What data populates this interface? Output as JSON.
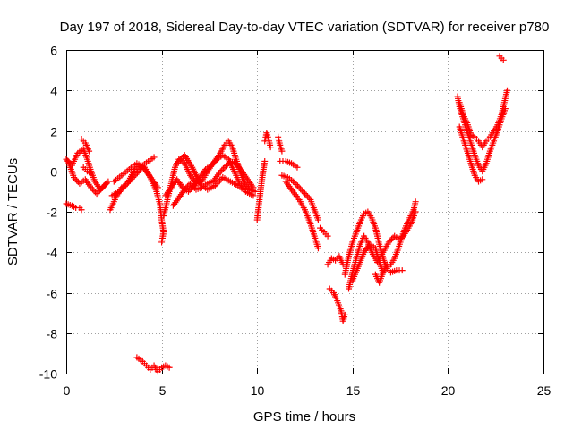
{
  "chart_data": {
    "type": "scatter",
    "title": "Day 197 of 2018, Sidereal Day-to-day VTEC variation (SDTVAR) for receiver p780",
    "xlabel": "GPS time / hours",
    "ylabel": "SDTVAR / TECUs",
    "xlim": [
      0,
      25
    ],
    "ylim": [
      -10,
      6
    ],
    "xticks": [
      "0",
      "5",
      "10",
      "15",
      "20",
      "25"
    ],
    "yticks": [
      "6",
      "4",
      "2",
      "0",
      "-2",
      "-4",
      "-6",
      "-8",
      "-10"
    ],
    "grid": true,
    "marker": "+",
    "marker_color": "#ff0000",
    "series": [
      {
        "name": "SDTVAR",
        "segments": [
          [
            [
              0.0,
              0.6
            ],
            [
              0.3,
              0.3
            ],
            [
              0.6,
              0.9
            ],
            [
              0.9,
              1.1
            ],
            [
              1.1,
              0.6
            ],
            [
              1.3,
              0.0
            ],
            [
              1.5,
              -0.5
            ],
            [
              1.8,
              -0.9
            ],
            [
              2.1,
              -0.6
            ]
          ],
          [
            [
              0.1,
              0.5
            ],
            [
              0.4,
              -0.3
            ],
            [
              0.7,
              -0.6
            ],
            [
              1.0,
              -0.4
            ],
            [
              1.3,
              -0.8
            ],
            [
              1.6,
              -1.1
            ],
            [
              1.9,
              -0.8
            ],
            [
              2.2,
              -0.5
            ]
          ],
          [
            [
              0.0,
              -1.6
            ],
            [
              0.3,
              -1.7
            ],
            [
              0.5,
              -1.8
            ],
            [
              0.7,
              -1.8
            ],
            [
              0.8,
              -1.9
            ]
          ],
          [
            [
              0.8,
              1.6
            ],
            [
              1.0,
              1.4
            ],
            [
              1.1,
              1.2
            ],
            [
              1.2,
              1.0
            ]
          ],
          [
            [
              0.9,
              0.2
            ],
            [
              1.1,
              0.0
            ],
            [
              1.3,
              -0.1
            ]
          ],
          [
            [
              2.3,
              -1.9
            ],
            [
              2.6,
              -1.3
            ],
            [
              2.9,
              -0.8
            ],
            [
              3.2,
              -0.6
            ],
            [
              3.5,
              -0.3
            ],
            [
              3.8,
              0.0
            ],
            [
              4.0,
              0.3
            ],
            [
              4.3,
              0.5
            ],
            [
              4.6,
              0.7
            ]
          ],
          [
            [
              2.4,
              -1.2
            ],
            [
              2.8,
              -1.0
            ],
            [
              3.2,
              -0.6
            ],
            [
              3.6,
              0.1
            ],
            [
              3.9,
              0.3
            ],
            [
              4.2,
              0.0
            ],
            [
              4.5,
              -0.4
            ],
            [
              4.8,
              -0.8
            ]
          ],
          [
            [
              2.5,
              -0.5
            ],
            [
              2.9,
              -0.2
            ],
            [
              3.3,
              0.1
            ],
            [
              3.7,
              0.4
            ],
            [
              4.1,
              0.2
            ],
            [
              4.4,
              -0.3
            ],
            [
              4.7,
              -0.9
            ],
            [
              4.9,
              -1.6
            ],
            [
              5.0,
              -2.4
            ],
            [
              5.1,
              -3.0
            ],
            [
              5.0,
              -3.5
            ]
          ],
          [
            [
              3.7,
              -9.2
            ],
            [
              4.0,
              -9.4
            ],
            [
              4.2,
              -9.6
            ],
            [
              4.4,
              -9.8
            ],
            [
              4.6,
              -9.6
            ],
            [
              4.8,
              -9.9
            ],
            [
              5.0,
              -9.7
            ],
            [
              5.2,
              -9.6
            ],
            [
              5.4,
              -9.7
            ]
          ],
          [
            [
              5.1,
              -2.2
            ],
            [
              5.3,
              -1.4
            ],
            [
              5.5,
              -0.6
            ],
            [
              5.7,
              0.2
            ],
            [
              5.9,
              0.6
            ],
            [
              6.2,
              0.4
            ],
            [
              6.5,
              -0.2
            ],
            [
              6.8,
              -0.6
            ],
            [
              7.1,
              -0.5
            ],
            [
              7.4,
              0.0
            ],
            [
              7.7,
              0.4
            ],
            [
              8.0,
              0.8
            ],
            [
              8.3,
              1.3
            ],
            [
              8.5,
              1.5
            ],
            [
              8.7,
              1.2
            ],
            [
              8.9,
              0.6
            ],
            [
              9.1,
              0.0
            ],
            [
              9.3,
              -0.5
            ],
            [
              9.6,
              -0.9
            ],
            [
              9.9,
              -1.0
            ]
          ],
          [
            [
              5.2,
              -1.2
            ],
            [
              5.5,
              -0.8
            ],
            [
              5.8,
              -0.4
            ],
            [
              6.1,
              -0.8
            ],
            [
              6.4,
              -1.0
            ],
            [
              6.7,
              -0.7
            ],
            [
              7.0,
              -0.3
            ],
            [
              7.3,
              0.1
            ],
            [
              7.6,
              0.3
            ],
            [
              7.9,
              0.6
            ],
            [
              8.2,
              0.8
            ],
            [
              8.5,
              0.6
            ],
            [
              8.8,
              0.0
            ],
            [
              9.1,
              -0.6
            ],
            [
              9.4,
              -0.9
            ]
          ],
          [
            [
              5.6,
              -1.7
            ],
            [
              5.9,
              -1.3
            ],
            [
              6.2,
              -0.9
            ],
            [
              6.5,
              -0.6
            ],
            [
              6.8,
              -0.9
            ],
            [
              7.1,
              -0.8
            ],
            [
              7.4,
              -0.6
            ],
            [
              7.7,
              -0.5
            ],
            [
              8.0,
              -0.1
            ],
            [
              8.3,
              0.2
            ],
            [
              8.6,
              0.5
            ],
            [
              8.9,
              0.4
            ],
            [
              9.2,
              0.0
            ],
            [
              9.5,
              -0.4
            ],
            [
              9.8,
              -0.8
            ]
          ],
          [
            [
              5.8,
              0.4
            ],
            [
              6.2,
              0.8
            ],
            [
              6.6,
              0.2
            ],
            [
              7.0,
              -0.6
            ],
            [
              7.4,
              -0.9
            ],
            [
              7.8,
              -0.7
            ],
            [
              8.2,
              -0.3
            ],
            [
              8.6,
              -0.5
            ],
            [
              9.0,
              -0.7
            ],
            [
              9.4,
              -1.0
            ],
            [
              9.8,
              -1.2
            ]
          ],
          [
            [
              10.0,
              -2.4
            ],
            [
              10.1,
              -1.6
            ],
            [
              10.2,
              -0.8
            ],
            [
              10.3,
              -0.1
            ],
            [
              10.4,
              0.5
            ]
          ],
          [
            [
              10.4,
              1.5
            ],
            [
              10.5,
              1.9
            ],
            [
              10.6,
              1.6
            ],
            [
              10.7,
              1.2
            ]
          ],
          [
            [
              11.1,
              1.7
            ],
            [
              11.2,
              1.3
            ],
            [
              11.3,
              1.0
            ]
          ],
          [
            [
              11.2,
              0.5
            ],
            [
              11.5,
              0.5
            ],
            [
              11.8,
              0.4
            ],
            [
              12.1,
              0.2
            ]
          ],
          [
            [
              11.3,
              -0.2
            ],
            [
              11.6,
              -0.3
            ],
            [
              11.9,
              -0.5
            ],
            [
              12.2,
              -0.8
            ],
            [
              12.5,
              -1.1
            ],
            [
              12.8,
              -1.4
            ],
            [
              13.0,
              -1.9
            ],
            [
              13.2,
              -2.4
            ]
          ],
          [
            [
              11.5,
              -0.5
            ],
            [
              11.8,
              -0.9
            ],
            [
              12.2,
              -1.4
            ],
            [
              12.5,
              -1.9
            ],
            [
              12.8,
              -2.6
            ],
            [
              13.0,
              -3.2
            ],
            [
              13.2,
              -3.8
            ]
          ],
          [
            [
              13.3,
              -2.8
            ],
            [
              13.5,
              -3.0
            ],
            [
              13.7,
              -3.2
            ]
          ],
          [
            [
              13.7,
              -4.6
            ],
            [
              13.9,
              -4.3
            ],
            [
              14.1,
              -4.4
            ],
            [
              14.3,
              -4.2
            ],
            [
              14.5,
              -4.6
            ]
          ],
          [
            [
              13.8,
              -5.8
            ],
            [
              14.0,
              -6.0
            ],
            [
              14.2,
              -6.4
            ],
            [
              14.4,
              -6.9
            ],
            [
              14.5,
              -7.4
            ],
            [
              14.6,
              -7.1
            ]
          ],
          [
            [
              14.6,
              -5.1
            ],
            [
              14.8,
              -4.2
            ],
            [
              15.0,
              -3.5
            ],
            [
              15.2,
              -3.0
            ],
            [
              15.4,
              -2.5
            ],
            [
              15.6,
              -2.1
            ],
            [
              15.8,
              -2.0
            ],
            [
              16.0,
              -2.3
            ],
            [
              16.2,
              -2.8
            ],
            [
              16.4,
              -3.6
            ],
            [
              16.6,
              -4.3
            ],
            [
              16.8,
              -4.8
            ],
            [
              17.0,
              -4.6
            ],
            [
              17.2,
              -4.3
            ],
            [
              17.4,
              -3.8
            ],
            [
              17.6,
              -3.2
            ],
            [
              17.8,
              -2.7
            ],
            [
              18.0,
              -2.3
            ],
            [
              18.2,
              -1.9
            ],
            [
              18.3,
              -1.5
            ]
          ],
          [
            [
              14.8,
              -5.8
            ],
            [
              15.0,
              -5.0
            ],
            [
              15.2,
              -4.3
            ],
            [
              15.4,
              -3.6
            ],
            [
              15.6,
              -3.2
            ],
            [
              15.8,
              -3.5
            ],
            [
              16.0,
              -4.0
            ],
            [
              16.3,
              -4.5
            ],
            [
              16.6,
              -4.0
            ],
            [
              16.9,
              -3.5
            ],
            [
              17.2,
              -3.2
            ],
            [
              17.5,
              -3.4
            ],
            [
              17.8,
              -3.0
            ],
            [
              18.1,
              -2.5
            ],
            [
              18.3,
              -2.0
            ]
          ],
          [
            [
              15.0,
              -5.4
            ],
            [
              15.3,
              -4.7
            ],
            [
              15.6,
              -4.0
            ],
            [
              15.9,
              -3.6
            ],
            [
              16.2,
              -3.8
            ],
            [
              16.4,
              -4.5
            ],
            [
              16.6,
              -5.0
            ],
            [
              16.8,
              -4.8
            ],
            [
              17.0,
              -5.0
            ],
            [
              17.3,
              -4.9
            ],
            [
              17.6,
              -4.9
            ]
          ],
          [
            [
              16.2,
              -5.1
            ],
            [
              16.4,
              -5.5
            ],
            [
              16.6,
              -5.0
            ],
            [
              16.8,
              -4.6
            ]
          ],
          [
            [
              20.5,
              3.7
            ],
            [
              20.6,
              3.2
            ],
            [
              20.8,
              2.6
            ],
            [
              21.0,
              2.0
            ],
            [
              21.2,
              1.4
            ],
            [
              21.4,
              0.8
            ],
            [
              21.6,
              0.3
            ],
            [
              21.8,
              0.0
            ],
            [
              22.0,
              0.4
            ],
            [
              22.2,
              1.0
            ],
            [
              22.4,
              1.5
            ],
            [
              22.6,
              2.0
            ],
            [
              22.8,
              2.6
            ],
            [
              23.0,
              3.1
            ]
          ],
          [
            [
              20.6,
              3.4
            ],
            [
              20.8,
              2.8
            ],
            [
              21.0,
              2.4
            ],
            [
              21.2,
              1.8
            ],
            [
              21.4,
              1.7
            ],
            [
              21.6,
              1.5
            ],
            [
              21.8,
              1.2
            ],
            [
              22.0,
              1.5
            ],
            [
              22.2,
              1.7
            ],
            [
              22.4,
              2.0
            ],
            [
              22.6,
              2.3
            ],
            [
              22.8,
              2.8
            ],
            [
              23.0,
              3.6
            ],
            [
              23.1,
              4.0
            ]
          ],
          [
            [
              20.6,
              2.2
            ],
            [
              20.8,
              1.6
            ],
            [
              21.0,
              1.0
            ],
            [
              21.2,
              0.4
            ],
            [
              21.4,
              -0.2
            ],
            [
              21.6,
              -0.5
            ],
            [
              21.8,
              -0.4
            ]
          ],
          [
            [
              22.7,
              5.7
            ],
            [
              22.9,
              5.5
            ]
          ]
        ]
      }
    ]
  }
}
